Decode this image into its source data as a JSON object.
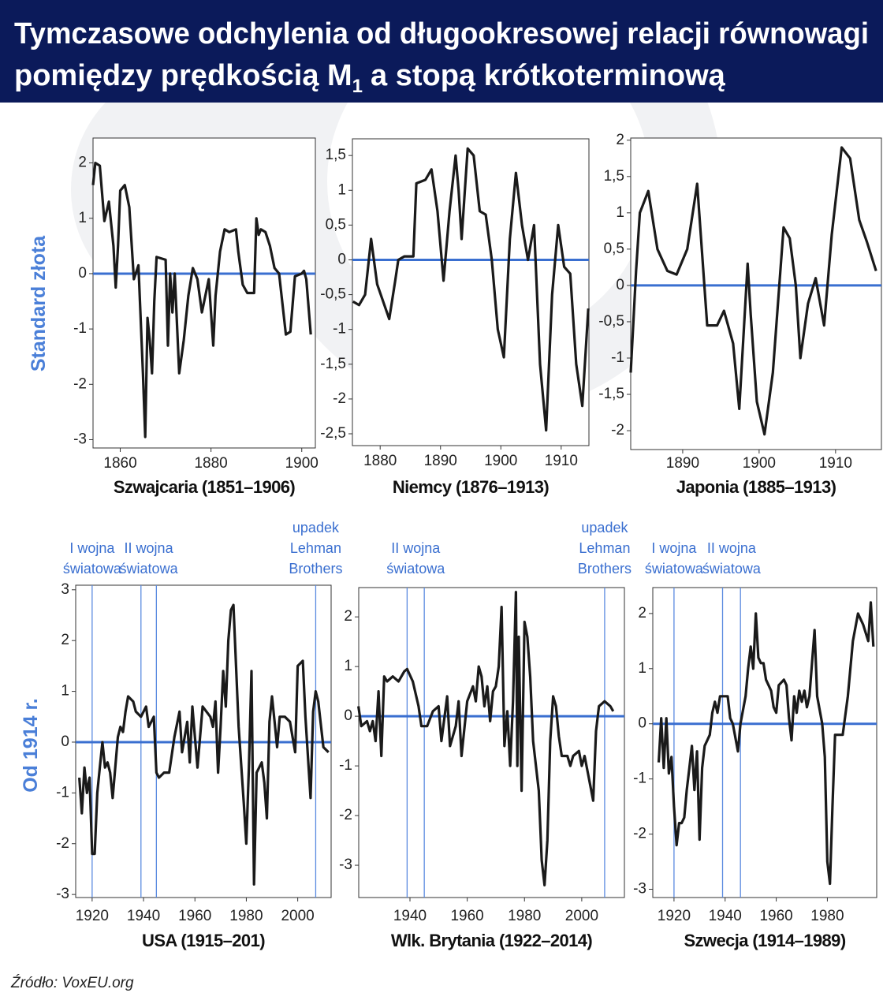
{
  "header": {
    "title_line1": "Tymczasowe odchylenia od długookresowej relacji równowagi",
    "title_line2": "pomiędzy prędkością M",
    "subscript": "1",
    "title_line2_end": "a stopą krótkoterminową"
  },
  "row_labels": [
    "Standard złota",
    "Od 1914 r."
  ],
  "source": "Źródło: VoxEU.org",
  "chart_data": [
    {
      "type": "line",
      "xlabel": "Szwajcaria (1851–1906)",
      "color": "#1a1a1a",
      "hline": 0,
      "hline_color": "#3a6fd0",
      "xlim": [
        1854,
        1903
      ],
      "xticks": [
        1860,
        1880,
        1900
      ],
      "ylim": [
        -3.15,
        2.45
      ],
      "yticks": [
        2,
        1,
        0,
        -1,
        -2,
        -3
      ],
      "x": [
        1854,
        1854.5,
        1855.5,
        1856.5,
        1857.5,
        1858.5,
        1859,
        1859.5,
        1860,
        1861,
        1862,
        1863,
        1864,
        1865,
        1865.5,
        1866,
        1866.5,
        1867,
        1867.5,
        1868,
        1870,
        1870.5,
        1871,
        1871.5,
        1872,
        1873,
        1874,
        1875,
        1876,
        1877,
        1878,
        1879.5,
        1880.5,
        1881,
        1882,
        1883,
        1884,
        1885.5,
        1886,
        1887,
        1888,
        1889.5,
        1890,
        1890.5,
        1891,
        1892,
        1893,
        1894,
        1895,
        1896.5,
        1897.5,
        1898.5,
        1900,
        1900.5,
        1901,
        1902
      ],
      "values": [
        1.6,
        2.0,
        1.95,
        0.95,
        1.3,
        0.5,
        -0.25,
        0.5,
        1.5,
        1.6,
        1.2,
        -0.1,
        0.15,
        -1.8,
        -2.95,
        -0.8,
        -1.2,
        -1.8,
        -0.5,
        0.3,
        0.25,
        -1.3,
        0,
        -0.7,
        0,
        -1.8,
        -1.2,
        -0.4,
        0.1,
        -0.1,
        -0.7,
        -0.1,
        -1.3,
        -0.4,
        0.4,
        0.8,
        0.75,
        0.8,
        0.4,
        -0.2,
        -0.35,
        -0.35,
        1.0,
        0.7,
        0.8,
        0.75,
        0.5,
        0.1,
        0,
        -1.1,
        -1.05,
        -0.05,
        0,
        0.05,
        -0.1,
        -1.1
      ]
    },
    {
      "type": "line",
      "xlabel": "Niemcy (1876–1913)",
      "color": "#1a1a1a",
      "hline": 0,
      "hline_color": "#3a6fd0",
      "xlim": [
        1875.4,
        1914.6
      ],
      "xticks": [
        1880,
        1890,
        1900,
        1910
      ],
      "ylim": [
        -2.67,
        1.74
      ],
      "yticks": [
        {
          "value": 1.5,
          "label": "1,5"
        },
        1,
        {
          "value": 0.5,
          "label": "0,5"
        },
        0,
        {
          "value": -0.5,
          "label": "-0,5"
        },
        -1,
        {
          "value": -1.5,
          "label": "-1,5"
        },
        -2,
        {
          "value": -2.5,
          "label": "-2,5"
        }
      ],
      "x": [
        1875.5,
        1876.5,
        1877.5,
        1878.5,
        1879.5,
        1881.5,
        1882.5,
        1883,
        1884,
        1885.5,
        1886,
        1887.5,
        1888.5,
        1889.5,
        1890.5,
        1891.5,
        1892.5,
        1893,
        1893.5,
        1894.5,
        1895.5,
        1896.5,
        1897.5,
        1898.5,
        1899.5,
        1900.5,
        1901.5,
        1902.5,
        1903.5,
        1904.5,
        1905.5,
        1906.5,
        1907.5,
        1908.5,
        1909.5,
        1910.5,
        1911.5,
        1912.5,
        1913.5,
        1914.5
      ],
      "values": [
        -0.6,
        -0.65,
        -0.5,
        0.3,
        -0.35,
        -0.85,
        -0.3,
        0,
        0.05,
        0.05,
        1.1,
        1.15,
        1.3,
        0.7,
        -0.3,
        0.7,
        1.5,
        1.0,
        0.3,
        1.6,
        1.5,
        0.7,
        0.65,
        0,
        -1.0,
        -1.4,
        0.3,
        1.25,
        0.5,
        0,
        0.5,
        -1.5,
        -2.45,
        -0.5,
        0.5,
        -0.1,
        -0.2,
        -1.5,
        -2.1,
        -0.7
      ]
    },
    {
      "type": "line",
      "xlabel": "Japonia (1885–1913)",
      "color": "#1a1a1a",
      "hline": 0,
      "hline_color": "#3a6fd0",
      "xlim": [
        1883.2,
        1916
      ],
      "xticks": [
        1890,
        1900,
        1910
      ],
      "ylim": [
        -2.26,
        2.03
      ],
      "yticks": [
        2,
        {
          "value": 1.5,
          "label": "1,5"
        },
        1,
        {
          "value": 0.5,
          "label": "0,5"
        },
        0,
        {
          "value": -0.5,
          "label": "-0,5"
        },
        -1,
        {
          "value": -1.5,
          "label": "-1,5"
        },
        -2
      ],
      "x": [
        1883.2,
        1883.9,
        1884.4,
        1885.5,
        1886.7,
        1888.0,
        1889.2,
        1890.6,
        1891.9,
        1893.2,
        1894.5,
        1895.4,
        1896.6,
        1897.4,
        1898.5,
        1898.9,
        1899.7,
        1900.7,
        1901.8,
        1903.2,
        1904.0,
        1904.8,
        1905.4,
        1906.4,
        1907.4,
        1908.5,
        1909.5,
        1910.8,
        1911.9,
        1913.1,
        1914.1,
        1915.3
      ],
      "values": [
        -1.2,
        0.2,
        1.0,
        1.3,
        0.5,
        0.2,
        0.15,
        0.5,
        1.4,
        -0.55,
        -0.55,
        -0.35,
        -0.8,
        -1.7,
        0.3,
        -0.4,
        -1.6,
        -2.05,
        -1.2,
        0.8,
        0.65,
        0,
        -1.0,
        -0.25,
        0.1,
        -0.55,
        0.7,
        1.9,
        1.75,
        0.9,
        0.6,
        0.2
      ]
    },
    {
      "type": "line",
      "xlabel": "USA (1915–201)",
      "color": "#1a1a1a",
      "hline": 0,
      "hline_color": "#3a6fd0",
      "event_color": "#5b8be0",
      "events": [
        {
          "label": [
            "I wojna",
            "światowa"
          ],
          "x": [
            1920
          ]
        },
        {
          "label": [
            "II wojna",
            "światowa"
          ],
          "x": [
            1939,
            1945
          ]
        },
        {
          "label": [
            "upadek",
            "Lehman",
            "Brothers"
          ],
          "x": [
            2007
          ]
        }
      ],
      "xlim": [
        1913.6,
        2013
      ],
      "xticks": [
        1920,
        1940,
        1960,
        1980,
        2000
      ],
      "ylim": [
        -3.06,
        3.09
      ],
      "yticks": [
        3,
        2,
        1,
        0,
        -1,
        -2,
        -3
      ],
      "x": [
        1915,
        1916,
        1917,
        1918,
        1919,
        1920,
        1921,
        1922,
        1923,
        1924,
        1925,
        1926,
        1927,
        1928,
        1930,
        1931,
        1932,
        1933,
        1934,
        1936,
        1937,
        1939,
        1941,
        1942,
        1944,
        1945,
        1946,
        1948,
        1950,
        1952,
        1954,
        1955,
        1957,
        1958,
        1959,
        1961,
        1963,
        1966,
        1967,
        1968,
        1969,
        1970,
        1971,
        1972,
        1973,
        1974,
        1975,
        1976,
        1977,
        1979,
        1980,
        1981,
        1982,
        1983,
        1984,
        1986,
        1987,
        1988,
        1989,
        1990,
        1991,
        1992,
        1993,
        1995,
        1997,
        1999,
        2000,
        2002,
        2003,
        2005,
        2006,
        2007,
        2008,
        2010,
        2012
      ],
      "values": [
        -0.7,
        -1.4,
        -0.5,
        -1.0,
        -0.7,
        -2.2,
        -2.2,
        -1.0,
        -0.5,
        0,
        -0.5,
        -0.4,
        -0.6,
        -1.1,
        0.1,
        0.3,
        0.2,
        0.6,
        0.9,
        0.8,
        0.6,
        0.5,
        0.7,
        0.3,
        0.5,
        -0.6,
        -0.7,
        -0.6,
        -0.6,
        0.1,
        0.6,
        -0.2,
        0.4,
        -0.4,
        0.7,
        -0.5,
        0.7,
        0.5,
        0.3,
        0.8,
        -0.6,
        0.3,
        1.4,
        0.7,
        2.0,
        2.6,
        2.7,
        1.5,
        0.3,
        -1.2,
        -2.0,
        -0.5,
        1.4,
        -2.8,
        -0.6,
        -0.4,
        -0.8,
        -1.5,
        0.4,
        0.9,
        0.4,
        -0.1,
        0.5,
        0.5,
        0.4,
        -0.2,
        1.5,
        1.6,
        0.5,
        -1.1,
        0.6,
        1.0,
        0.8,
        -0.1,
        -0.2
      ]
    },
    {
      "type": "line",
      "xlabel": "Wlk. Brytania (1922–2014)",
      "color": "#1a1a1a",
      "hline": 0,
      "hline_color": "#3a6fd0",
      "event_color": "#5b8be0",
      "events": [
        {
          "label": [
            "II wojna",
            "światowa"
          ],
          "x": [
            1939,
            1945
          ]
        },
        {
          "label": [
            "upadek",
            "Lehman",
            "Brothers"
          ],
          "x": [
            2008
          ]
        }
      ],
      "xlim": [
        1922.1,
        2014.9
      ],
      "xticks": [
        1940,
        1960,
        1980,
        2000
      ],
      "ylim": [
        -3.65,
        2.59
      ],
      "yticks": [
        2,
        1,
        0,
        -1,
        -2,
        -3
      ],
      "x": [
        1922,
        1923,
        1925,
        1926,
        1927,
        1928,
        1929,
        1930,
        1931,
        1932,
        1934,
        1936,
        1938,
        1939,
        1941,
        1943,
        1944,
        1946,
        1948,
        1950,
        1951,
        1953,
        1954,
        1956,
        1957,
        1958,
        1960,
        1962,
        1963,
        1964,
        1965,
        1966,
        1967,
        1968,
        1969,
        1970,
        1971,
        1972,
        1973,
        1974,
        1975,
        1976,
        1977,
        1977.5,
        1978,
        1979,
        1980,
        1981,
        1982,
        1983,
        1985,
        1986,
        1987,
        1988,
        1989,
        1990,
        1991,
        1992,
        1993,
        1995,
        1996,
        1997,
        1999,
        2000,
        2001,
        2003,
        2004,
        2005,
        2006,
        2008,
        2010,
        2011
      ],
      "values": [
        0.2,
        -0.2,
        -0.1,
        -0.3,
        -0.1,
        -0.5,
        0.5,
        -0.8,
        0.8,
        0.7,
        0.8,
        0.7,
        0.9,
        0.95,
        0.7,
        0.2,
        -0.2,
        -0.2,
        0.1,
        0.2,
        -0.5,
        0.4,
        -0.6,
        -0.2,
        0.3,
        -0.8,
        0.3,
        0.6,
        0.3,
        1.0,
        0.8,
        0.2,
        0.6,
        -0.1,
        0.5,
        0.6,
        1.0,
        2.2,
        -0.6,
        0.1,
        -1.0,
        0.3,
        2.5,
        -1,
        1.6,
        -1.5,
        1.9,
        1.6,
        0.8,
        -0.5,
        -1.5,
        -2.9,
        -3.4,
        -2.5,
        -0.5,
        0.4,
        0.2,
        -0.4,
        -0.8,
        -0.8,
        -1.0,
        -0.8,
        -0.7,
        -1.0,
        -0.8,
        -1.4,
        -1.7,
        -0.3,
        0.2,
        0.3,
        0.2,
        0.1
      ]
    },
    {
      "type": "line",
      "xlabel": "Szwecja (1914–1989)",
      "color": "#1a1a1a",
      "hline": 0,
      "hline_color": "#3a6fd0",
      "event_color": "#5b8be0",
      "events": [
        {
          "label": [
            "I wojna",
            "światowa"
          ],
          "x": [
            1920
          ]
        },
        {
          "label": [
            "II wojna",
            "światowa"
          ],
          "x": [
            1939,
            1946
          ]
        }
      ],
      "xlim": [
        1911.7,
        1999.3
      ],
      "xticks": [
        1920,
        1940,
        1960,
        1980
      ],
      "ylim": [
        -3.15,
        2.47
      ],
      "yticks": [
        2,
        1,
        0,
        -1,
        -2,
        -3
      ],
      "x": [
        1914,
        1915,
        1916,
        1917,
        1918,
        1919,
        1920,
        1921,
        1922,
        1923,
        1924,
        1925,
        1926,
        1927,
        1928,
        1929,
        1930,
        1931,
        1932,
        1933,
        1934,
        1935,
        1936,
        1937,
        1938,
        1941,
        1942,
        1943,
        1945,
        1946,
        1948,
        1949,
        1950,
        1951,
        1952,
        1953,
        1954,
        1955,
        1956,
        1958,
        1959,
        1960,
        1961,
        1963,
        1964,
        1965,
        1966,
        1967,
        1968,
        1969,
        1970,
        1971,
        1972,
        1973,
        1975,
        1976,
        1978,
        1979,
        1980,
        1981,
        1982,
        1983,
        1986,
        1988,
        1990,
        1992,
        1994,
        1996,
        1997,
        1998
      ],
      "values": [
        -0.7,
        0.1,
        -0.8,
        0.1,
        -0.9,
        -0.6,
        -1.5,
        -2.2,
        -1.8,
        -1.8,
        -1.7,
        -1.2,
        -0.8,
        -0.4,
        -1.2,
        -0.5,
        -2.1,
        -0.8,
        -0.4,
        -0.3,
        -0.2,
        0.2,
        0.4,
        0.2,
        0.5,
        0.5,
        0.1,
        0,
        -0.5,
        0,
        0.5,
        1.0,
        1.4,
        1.0,
        2.0,
        1.2,
        1.1,
        1.1,
        0.8,
        0.6,
        0.3,
        0.2,
        0.7,
        0.8,
        0.7,
        0.1,
        -0.3,
        0.5,
        0.2,
        0.6,
        0.4,
        0.6,
        0.3,
        0.5,
        1.7,
        0.5,
        0,
        -0.6,
        -2.5,
        -2.9,
        -1.5,
        -0.2,
        -0.2,
        0.5,
        1.5,
        2.0,
        1.8,
        1.5,
        2.2,
        1.4
      ]
    }
  ]
}
